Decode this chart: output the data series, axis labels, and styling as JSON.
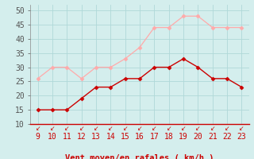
{
  "hours": [
    9,
    10,
    11,
    12,
    13,
    14,
    15,
    16,
    17,
    18,
    19,
    20,
    21,
    22,
    23
  ],
  "vent_moyen": [
    15,
    15,
    15,
    19,
    23,
    23,
    26,
    26,
    30,
    30,
    33,
    30,
    26,
    26,
    23
  ],
  "rafales": [
    26,
    30,
    30,
    26,
    30,
    30,
    33,
    37,
    44,
    44,
    48,
    48,
    44,
    44,
    44
  ],
  "color_moyen": "#cc0000",
  "color_rafales": "#ffaaaa",
  "bg_color": "#d4eeed",
  "grid_color": "#b0d8d8",
  "xlabel": "Vent moyen/en rafales ( km/h )",
  "ylim": [
    10,
    52
  ],
  "yticks": [
    10,
    15,
    20,
    25,
    30,
    35,
    40,
    45,
    50
  ],
  "tick_fontsize": 7,
  "label_fontsize": 7.5
}
